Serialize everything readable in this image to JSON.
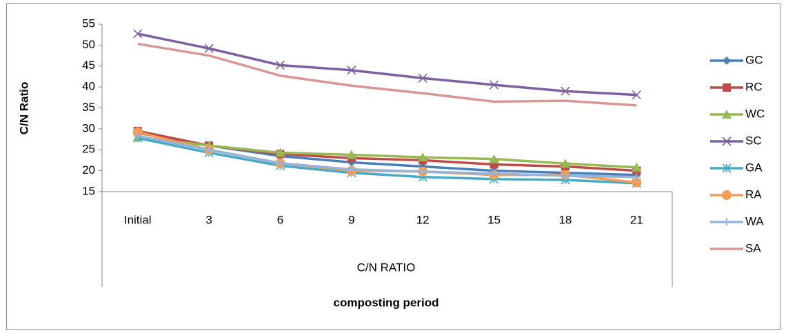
{
  "chart_data": {
    "type": "line",
    "ylabel": "C/N Ratio",
    "xlabel": "composting period",
    "category_group": "C/N RATIO",
    "categories": [
      "Initial",
      "3",
      "6",
      "9",
      "12",
      "15",
      "18",
      "21"
    ],
    "ylim": [
      15,
      55
    ],
    "yticks": [
      15,
      20,
      25,
      30,
      35,
      40,
      45,
      50,
      55
    ],
    "grid": false,
    "legend": "right",
    "series": [
      {
        "name": "GC",
        "color": "#4a7ebb",
        "marker": "diamond",
        "values": [
          29,
          26,
          23.5,
          22,
          21,
          20,
          19.5,
          19
        ]
      },
      {
        "name": "RC",
        "color": "#be4b48",
        "marker": "square",
        "values": [
          29.5,
          26,
          24,
          23,
          22.5,
          21.5,
          21,
          20
        ]
      },
      {
        "name": "WC",
        "color": "#98b954",
        "marker": "triangle",
        "values": [
          28,
          26,
          24.3,
          23.8,
          23.2,
          22.8,
          21.7,
          20.8
        ]
      },
      {
        "name": "SC",
        "color": "#7d60a0",
        "marker": "x",
        "values": [
          52.7,
          49.2,
          45.2,
          44,
          42.1,
          40.5,
          39,
          38.1
        ]
      },
      {
        "name": "GA",
        "color": "#46aac5",
        "marker": "star",
        "values": [
          27.8,
          24.3,
          21.2,
          19.5,
          18.5,
          18,
          17.8,
          17
        ]
      },
      {
        "name": "RA",
        "color": "#f59d56",
        "marker": "circle",
        "values": [
          29.2,
          25,
          21.8,
          20,
          19.8,
          19,
          19,
          17.2
        ]
      },
      {
        "name": "WA",
        "color": "#95b3d7",
        "marker": "plus",
        "values": [
          28.3,
          25,
          21.8,
          20.3,
          19.8,
          19.3,
          18.8,
          18.5
        ]
      },
      {
        "name": "SA",
        "color": "#d99694",
        "marker": "none",
        "values": [
          50.3,
          47.5,
          42.7,
          40.3,
          38.5,
          36.5,
          36.7,
          35.6
        ]
      }
    ]
  }
}
